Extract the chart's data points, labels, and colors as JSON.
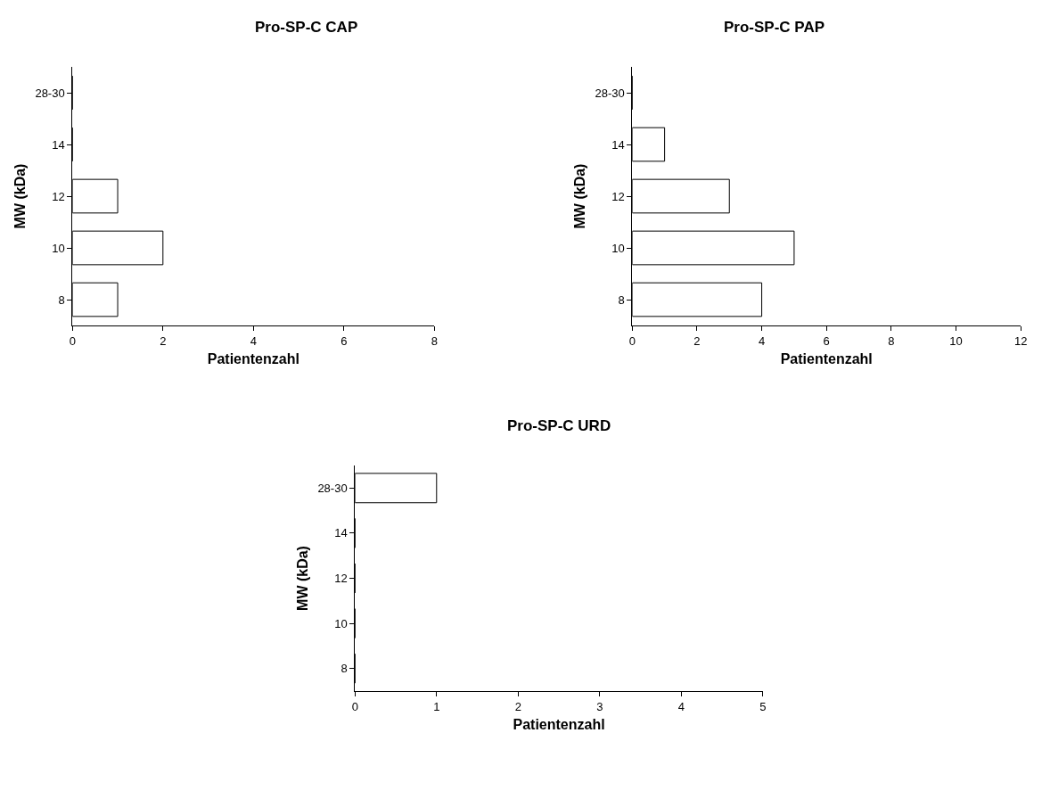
{
  "chart_data": [
    {
      "type": "bar",
      "orientation": "horizontal",
      "title": "Pro-SP-C CAP",
      "xlabel": "Patientenzahl",
      "ylabel": "MW (kDa)",
      "categories": [
        "28-30",
        "14",
        "12",
        "10",
        "8"
      ],
      "values": [
        0,
        0,
        1,
        2,
        1
      ],
      "color": "#ffffff",
      "xlim": [
        0,
        8
      ],
      "xticks": [
        0,
        2,
        4,
        6,
        8
      ]
    },
    {
      "type": "bar",
      "orientation": "horizontal",
      "title": "Pro-SP-C PAP",
      "xlabel": "Patientenzahl",
      "ylabel": "MW (kDa)",
      "categories": [
        "28-30",
        "14",
        "12",
        "10",
        "8"
      ],
      "values": [
        0,
        1,
        3,
        5,
        4
      ],
      "color": "#ffffff",
      "xlim": [
        0,
        12
      ],
      "xticks": [
        0,
        2,
        4,
        6,
        8,
        10,
        12
      ]
    },
    {
      "type": "bar",
      "orientation": "horizontal",
      "title": "Pro-SP-C URD",
      "xlabel": "Patientenzahl",
      "ylabel": "MW (kDa)",
      "categories": [
        "28-30",
        "14",
        "12",
        "10",
        "8"
      ],
      "values": [
        1,
        0,
        0,
        0,
        0
      ],
      "color": "#ffffff",
      "xlim": [
        0,
        5
      ],
      "xticks": [
        0,
        1,
        2,
        3,
        4,
        5
      ]
    }
  ]
}
